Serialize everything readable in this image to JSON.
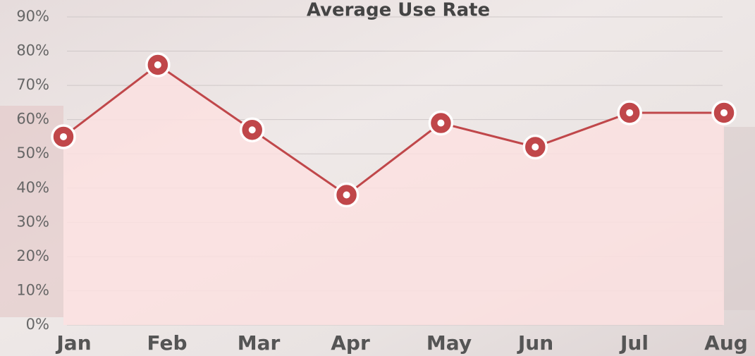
{
  "chart_data": {
    "type": "line",
    "title": "Average Use Rate",
    "categories": [
      "Jan",
      "Feb",
      "Mar",
      "Apr",
      "May",
      "Jun",
      "Jul",
      "Aug"
    ],
    "series": [
      {
        "name": "Average Use Rate",
        "color": "#c0474a",
        "values": [
          55,
          76,
          57,
          38,
          59,
          52,
          62,
          62
        ]
      }
    ],
    "ylim": [
      0,
      90
    ],
    "yticks": [
      {
        "value": 0,
        "label": "0%"
      },
      {
        "value": 10,
        "label": "10%"
      },
      {
        "value": 20,
        "label": "20%"
      },
      {
        "value": 30,
        "label": "30%"
      },
      {
        "value": 40,
        "label": "40%"
      },
      {
        "value": 50,
        "label": "50%"
      },
      {
        "value": 60,
        "label": "60%"
      },
      {
        "value": 70,
        "label": "70%"
      },
      {
        "value": 80,
        "label": "80%"
      },
      {
        "value": 90,
        "label": "90%"
      }
    ],
    "grid": true
  }
}
